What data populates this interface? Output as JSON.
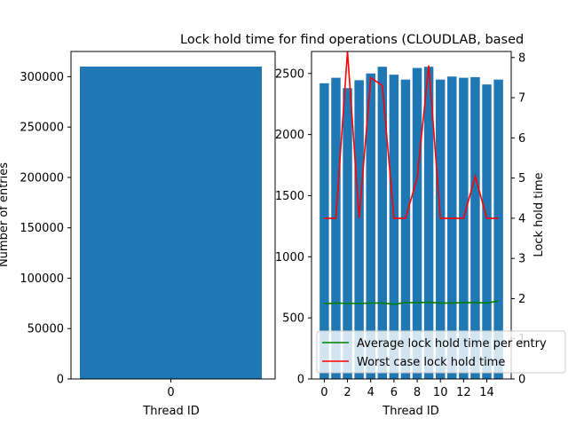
{
  "chart_data": [
    {
      "type": "bar",
      "title": "",
      "xlabel": "Thread ID",
      "ylabel": "Number of entries",
      "categories": [
        "0"
      ],
      "values": [
        310000
      ],
      "xticks": [
        "0"
      ],
      "ylim": [
        0,
        325000
      ],
      "yticks": [
        0,
        50000,
        100000,
        150000,
        200000,
        250000,
        300000
      ],
      "ytick_labels": [
        "0",
        "50000",
        "100000",
        "150000",
        "200000",
        "250000",
        "300000"
      ],
      "color": "#1f77b4"
    },
    {
      "type": "bar",
      "title": "Lock hold time for find operations (CLOUDLAB, based",
      "xlabel": "Thread ID",
      "ylabel": "",
      "x": [
        0,
        1,
        2,
        3,
        4,
        5,
        6,
        7,
        8,
        9,
        10,
        11,
        12,
        13,
        14,
        15
      ],
      "values": [
        2420,
        2465,
        2380,
        2445,
        2500,
        2555,
        2490,
        2450,
        2545,
        2555,
        2450,
        2475,
        2465,
        2470,
        2410,
        2450
      ],
      "color": "#1f77b4",
      "xlim": [
        -1.1,
        16.1
      ],
      "ylim": [
        0,
        2680
      ],
      "xticks": [
        0,
        2,
        4,
        6,
        8,
        10,
        12,
        14
      ],
      "xtick_labels": [
        "0",
        "2",
        "4",
        "6",
        "8",
        "10",
        "12",
        "14"
      ],
      "yticks": [
        0,
        500,
        1000,
        1500,
        2000,
        2500
      ],
      "ytick_labels": [
        "0",
        "500",
        "1000",
        "1500",
        "2000",
        "2500"
      ],
      "secondary_axis": {
        "type": "line",
        "ylabel": "Lock hold time",
        "ylim": [
          0,
          8.15
        ],
        "yticks": [
          0,
          1,
          2,
          3,
          4,
          5,
          6,
          7,
          8
        ],
        "ytick_labels": [
          "0",
          "1",
          "2",
          "3",
          "4",
          "5",
          "6",
          "7",
          "8"
        ],
        "series": [
          {
            "name": "Average lock hold time per entry",
            "color": "#008000",
            "x": [
              0,
              1,
              2,
              3,
              4,
              5,
              6,
              7,
              8,
              9,
              10,
              11,
              12,
              13,
              14,
              15
            ],
            "values": [
              1.87,
              1.89,
              1.88,
              1.88,
              1.89,
              1.89,
              1.86,
              1.9,
              1.9,
              1.91,
              1.89,
              1.89,
              1.9,
              1.9,
              1.89,
              1.94
            ]
          },
          {
            "name": "Worst case lock hold time",
            "color": "#ff0000",
            "x": [
              0,
              1,
              2,
              3,
              4,
              5,
              6,
              7,
              8,
              9,
              10,
              11,
              12,
              13,
              14,
              15
            ],
            "values": [
              4.0,
              4.0,
              8.15,
              4.0,
              7.5,
              7.3,
              4.0,
              4.0,
              5.0,
              7.8,
              4.0,
              4.0,
              4.0,
              5.05,
              4.0,
              4.0
            ]
          }
        ]
      },
      "legend_position": "lower-right"
    }
  ]
}
